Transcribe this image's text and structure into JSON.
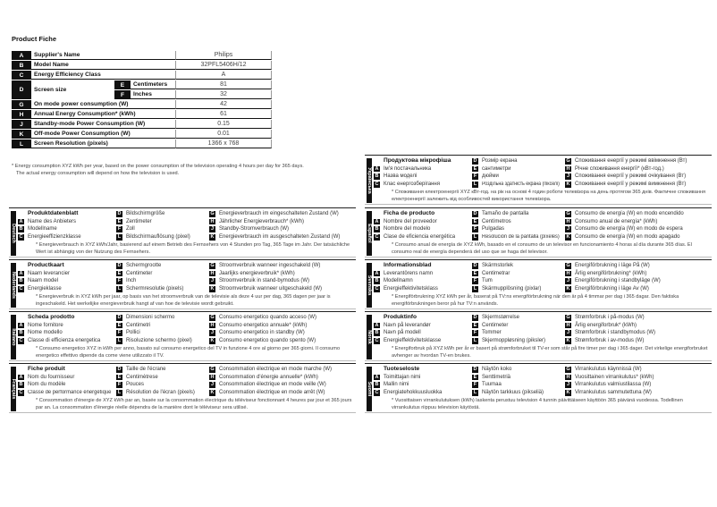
{
  "title": "Product Fiche",
  "fiche": {
    "rows": [
      {
        "key": "A",
        "label": "Supplier's Name",
        "value": "Philips"
      },
      {
        "key": "B",
        "label": "Model Name",
        "value": "32PFL5406H/12"
      },
      {
        "key": "C",
        "label": "Energy Efficiency Class",
        "value": "A"
      },
      {
        "key": "G",
        "label": "On mode power consumption (W)",
        "value": "42"
      },
      {
        "key": "H",
        "label": "Annual Energy Consumption* (kWh)",
        "value": "61"
      },
      {
        "key": "J",
        "label": "Standby-mode Power Consumption (W)",
        "value": "0.15"
      },
      {
        "key": "K",
        "label": "Off-mode Power Consumption (W)",
        "value": "0.01"
      },
      {
        "key": "L",
        "label": "Screen Resolution (pixels)",
        "value": "1366 x 768"
      }
    ],
    "screen": {
      "key": "D",
      "label": "Screen size",
      "cm_key": "E",
      "cm_label": "Centimeters",
      "cm_value": "81",
      "in_key": "F",
      "in_label": "Inches",
      "in_value": "32"
    },
    "footnote_1": "* Energy consumption XYZ kWh per year, based on the power consumption of the television operating 4 hours per day for 365 days.",
    "footnote_2": "The actual energy consumption will depend on how the television is used."
  },
  "languages": [
    {
      "lang": "Deutsch",
      "title": "Produktdatenblatt",
      "A": "Name des Anbieters",
      "B": "Modellname",
      "C": "Energieeffizienzklasse",
      "D": "Bildschirmgröße",
      "E": "Zentimeter",
      "F": "Zoll",
      "L": "Bildschirmauflösung (pixel)",
      "G": "Energieverbrauch im eingeschalteten Zustand (W)",
      "H": "Jährlicher Energieverbrauch* (kWh)",
      "J": "Standby-Stromverbrauch (W)",
      "K": "Energieverbrauch im ausgeschalteten Zustand (W)",
      "note": "* Energieverbrauch in XYZ kWh/Jahr, basierend auf einem Betrieb des Fernsehers von 4 Stunden pro Tag, 365 Tage im Jahr. Der tatsächliche Wert ist abhängig von der Nutzung des Fernsehers."
    },
    {
      "lang": "Nederlands",
      "title": "Productkaart",
      "A": "Naam leverancier",
      "B": "Naam model",
      "C": "Energieklasse",
      "D": "Schermgrootte",
      "E": "Centimeter",
      "F": "Inch",
      "L": "Schermresolutie (pixels)",
      "G": "Stroomverbruik wanneer ingeschakeld (W)",
      "H": "Jaarlijks energieverbruik* (kWh)",
      "J": "Stroomverbruik in stand-bymodus (W)",
      "K": "Stroomverbruik wanneer uitgeschakeld (W)",
      "note": "* Energieverbruik in XYZ kWh per jaar, op basis van het stroomverbruik van de televisie als deze 4 uur per dag, 365 dagen per jaar is ingeschakeld. Het werkelijke energieverbruik hangt af van hoe de televisie wordt gebruikt."
    },
    {
      "lang": "Italiano",
      "title": "Scheda prodotto",
      "A": "Nome fornitore",
      "B": "Nome modello",
      "C": "Classe di efficienza energetica",
      "D": "Dimensioni schermo",
      "E": "Centimetri",
      "F": "Pollici",
      "L": "Risoluzione schermo (pixel)",
      "G": "Consumo energetico quando acceso (W)",
      "H": "Consumo energetico annuale* (kWh)",
      "J": "Consumo energetico in standby (W)",
      "K": "Consumo energetico quando spento (W)",
      "note": "* Consumo energetico XYZ in kWh per anno, basato sul consumo energetico del TV in funzione 4 ore al giorno per 365 giorni. Il consumo energetico effettivo dipende da come viene utilizzato il TV."
    },
    {
      "lang": "Français",
      "title": "Fiche produit",
      "A": "Nom du fournisseur",
      "B": "Nom du modèle",
      "C": "Classe de performance énergétique",
      "D": "Taille de l'écrane",
      "E": "Centimètrese",
      "F": "Pouces",
      "L": "Résolution de l'écran (pixels)",
      "G": "Consommation électrique en mode marche (W)",
      "H": "Consommation d'énergie annuelle* (kWh)",
      "J": "Consommation électrique en mode veille (W)",
      "K": "Consommation électrique en mode arrêt (W)",
      "note": "* Consommation d'énergie de XYZ kWh par an, basée sur la consommation électrique du téléviseur fonctionnant 4 heures par jour et 365 jours par an. La consommation d'énergie réelle dépendra de la manière dont le téléviseur sera utilisé."
    },
    {
      "lang": "Українська",
      "title": "Продуктова мікрофіша",
      "A": "Ім'я постачальника",
      "B": "Назва моделі",
      "C": "Клас енергозберігання",
      "D": "Розмір екрана",
      "E": "сантиметри",
      "F": "дюйми",
      "L": "Роздільна здатність екрана (пікселі)",
      "G": "Споживання енергії у режимі ввімкнення (Вт)",
      "H": "Річне споживання енергії* (кВт-год.)",
      "J": "Споживання енергії у режимі очікування (Вт)",
      "K": "Споживання енергії у режимі вимкнення (Вт)",
      "note": "* Споживання електроенергії XYZ кВт-год. на рік на основі 4 годин роботи телевізора на день протягом 365 днів. Фактичне споживання електроенергії залежить від особливостей використання телевізора."
    },
    {
      "lang": "Español",
      "title": "Ficha de producto",
      "A": "Nombre del proveedor",
      "B": "Nombre del modelo",
      "C": "Clase de eficiencia energética",
      "D": "Tamaño de pantalla",
      "E": "Centímetros",
      "F": "Pulgadas",
      "L": "Resolución de la pantalla (píxeles)",
      "G": "Consumo de energía (W) en modo encendido",
      "H": "Consumo anual de energía* (kWh)",
      "J": "Consumo de energía (W) en modo de espera",
      "K": "Consumo de energía (W) en modo apagado",
      "note": "* Consumo anual de energía de XYZ kWh, basado en el consumo de un televisor en funcionamiento 4 horas al día durante 365 días. El consumo real de energía dependerá del uso que se haga del televisor."
    },
    {
      "lang": "Svenska",
      "title": "Informationsblad",
      "A": "Leverantörens namn",
      "B": "Modellnamn",
      "C": "Energieffektivitetsklass",
      "D": "Skärmstorlek",
      "E": "Centimetrar",
      "F": "Tum",
      "L": "Skärmupplösning (pixlar)",
      "G": "Energiförbrukning i läge På (W)",
      "H": "Årlig energiförbrukning* (kWh)",
      "J": "Energiförbrukning i standbyläge (W)",
      "K": "Energiförbrukning i läge Av (W)",
      "note": "* Energiförbrukning XYZ kWh per år, baserat på TV:ns energiförbrukning när den är på 4 timmar per dag i 365 dagar. Den faktiska energiförbrukningen beror på hur TV:n används."
    },
    {
      "lang": "Norsk",
      "title": "Produktinfo",
      "A": "Navn på leverandør",
      "B": "Navn på modell",
      "C": "Energieffektivitetsklasse",
      "D": "Skjermstørrelse",
      "E": "Centimeter",
      "F": "Tommer",
      "L": "Skjermoppløsning (piksler)",
      "G": "Strømforbruk i på-modus (W)",
      "H": "Årlig energiforbruk* (kWh)",
      "J": "Strømforbruk i standbymodus (W)",
      "K": "Strømforbruk i av-modus (W)",
      "note": "* Energiforbruk på XYZ kWh per år er basert på strømforbruket til TV-er som står på fire timer per dag i 365 dager. Det virkelige energiforbruket avhenger av hvordan TV-en brukes."
    },
    {
      "lang": "Suomi",
      "title": "Tuoteseloste",
      "A": "Toimittajan nimi",
      "B": "Mallin nimi",
      "C": "Energiatehokkuusluokka",
      "D": "Näytön koko",
      "E": "Senttimetriä",
      "F": "Tuumaa",
      "L": "Näytön tarkkuus (pikseliä)",
      "G": "Virrankulutus käynnissä (W)",
      "H": "Vuosittainen virrankulutus* (kWh)",
      "J": "Virrankulutus valmiustilassa (W)",
      "K": "Virrankulutus sammutettuna (W)",
      "note": "* Vuosittaisen virrankulutuksen (kWh) laskenta perustuu television 4 tunnin päivittäiseen käyttöön 365 päivänä vuodessa. Todellinen virrankulutus riippuu television käytöstä."
    }
  ]
}
